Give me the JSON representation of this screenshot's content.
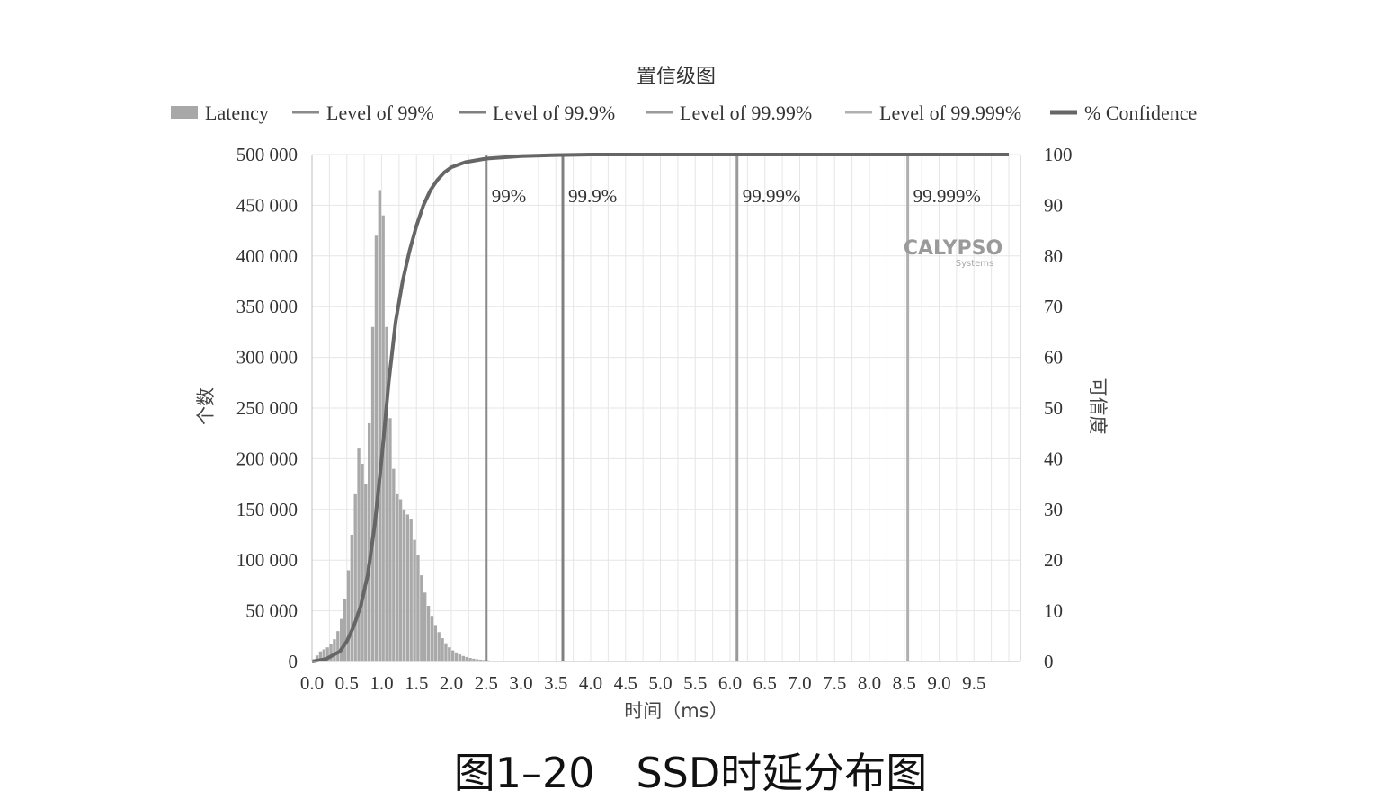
{
  "chart_data": {
    "type": "bar",
    "title": "置信级图",
    "xlabel": "时间（ms）",
    "ylabel_left": "个数",
    "ylabel_right": "可信度",
    "xlim": [
      0,
      10.0
    ],
    "ylim_left": [
      0,
      500000
    ],
    "ylim_right": [
      0,
      100
    ],
    "x_ticks": [
      "0.0",
      "0.5",
      "1.0",
      "1.5",
      "2.0",
      "2.5",
      "3.0",
      "3.5",
      "4.0",
      "4.5",
      "5.0",
      "5.5",
      "6.0",
      "6.5",
      "7.0",
      "7.5",
      "8.0",
      "8.5",
      "9.0",
      "9.5"
    ],
    "y_left_ticks": [
      "0",
      "50 000",
      "100 000",
      "150 000",
      "200 000",
      "250 000",
      "300 000",
      "350 000",
      "400 000",
      "450 000",
      "500 000"
    ],
    "y_right_ticks": [
      "0",
      "10",
      "20",
      "30",
      "40",
      "50",
      "60",
      "70",
      "80",
      "90",
      "100"
    ],
    "grid": true,
    "legend_position": "top",
    "legend": [
      {
        "label": "Latency",
        "kind": "bar",
        "color": "#a8a8a8"
      },
      {
        "label": "Level of 99%",
        "kind": "line",
        "color": "#8a8a8a"
      },
      {
        "label": "Level of 99.9%",
        "kind": "line",
        "color": "#808080"
      },
      {
        "label": "Level of 99.99%",
        "kind": "line",
        "color": "#9a9a9a"
      },
      {
        "label": "Level of 99.999%",
        "kind": "line",
        "color": "#b0b0b0"
      },
      {
        "label": "% Confidence",
        "kind": "line-thick",
        "color": "#666666"
      }
    ],
    "latency_histogram": {
      "bin_width_ms": 0.05,
      "bin_start_ms": [
        0.0,
        0.05,
        0.1,
        0.15,
        0.2,
        0.25,
        0.3,
        0.35,
        0.4,
        0.45,
        0.5,
        0.55,
        0.6,
        0.65,
        0.7,
        0.75,
        0.8,
        0.85,
        0.9,
        0.95,
        1.0,
        1.05,
        1.1,
        1.15,
        1.2,
        1.25,
        1.3,
        1.35,
        1.4,
        1.45,
        1.5,
        1.55,
        1.6,
        1.65,
        1.7,
        1.75,
        1.8,
        1.85,
        1.9,
        1.95,
        2.0,
        2.05,
        2.1,
        2.15,
        2.2,
        2.25,
        2.3,
        2.35,
        2.4,
        2.45,
        2.5,
        2.6,
        2.7,
        2.8,
        2.9,
        3.0,
        3.2,
        3.4,
        3.6,
        4.0
      ],
      "counts": [
        2000,
        6000,
        10000,
        12000,
        14000,
        17000,
        22000,
        30000,
        42000,
        62000,
        90000,
        125000,
        165000,
        210000,
        195000,
        175000,
        235000,
        330000,
        420000,
        465000,
        440000,
        330000,
        240000,
        190000,
        165000,
        160000,
        150000,
        145000,
        140000,
        120000,
        105000,
        85000,
        68000,
        55000,
        45000,
        36000,
        29000,
        23000,
        18000,
        14000,
        11000,
        9000,
        7000,
        5500,
        4500,
        3500,
        2800,
        2200,
        1800,
        1500,
        1200,
        900,
        700,
        500,
        400,
        300,
        200,
        150,
        100,
        50
      ]
    },
    "confidence_curve": {
      "x": [
        0.0,
        0.2,
        0.4,
        0.5,
        0.6,
        0.7,
        0.8,
        0.9,
        1.0,
        1.1,
        1.2,
        1.3,
        1.4,
        1.5,
        1.6,
        1.7,
        1.8,
        1.9,
        2.0,
        2.2,
        2.5,
        3.0,
        3.5,
        4.0,
        6.0,
        8.0,
        10.0
      ],
      "y": [
        0,
        0.5,
        2,
        4,
        7,
        11,
        17,
        27,
        40,
        55,
        67,
        75,
        81,
        86,
        90,
        93,
        95,
        96.5,
        97.5,
        98.5,
        99.2,
        99.7,
        99.9,
        100,
        100,
        100,
        100
      ]
    },
    "levels": [
      {
        "label": "99%",
        "x": 2.5,
        "color": "#8a8a8a"
      },
      {
        "label": "99.9%",
        "x": 3.6,
        "color": "#808080"
      },
      {
        "label": "99.99%",
        "x": 6.1,
        "color": "#9a9a9a"
      },
      {
        "label": "99.999%",
        "x": 8.55,
        "color": "#b0b0b0"
      }
    ]
  },
  "brand": {
    "name": "CALYPSO",
    "sub": "Systems"
  },
  "caption": "图1–20　SSD时延分布图"
}
